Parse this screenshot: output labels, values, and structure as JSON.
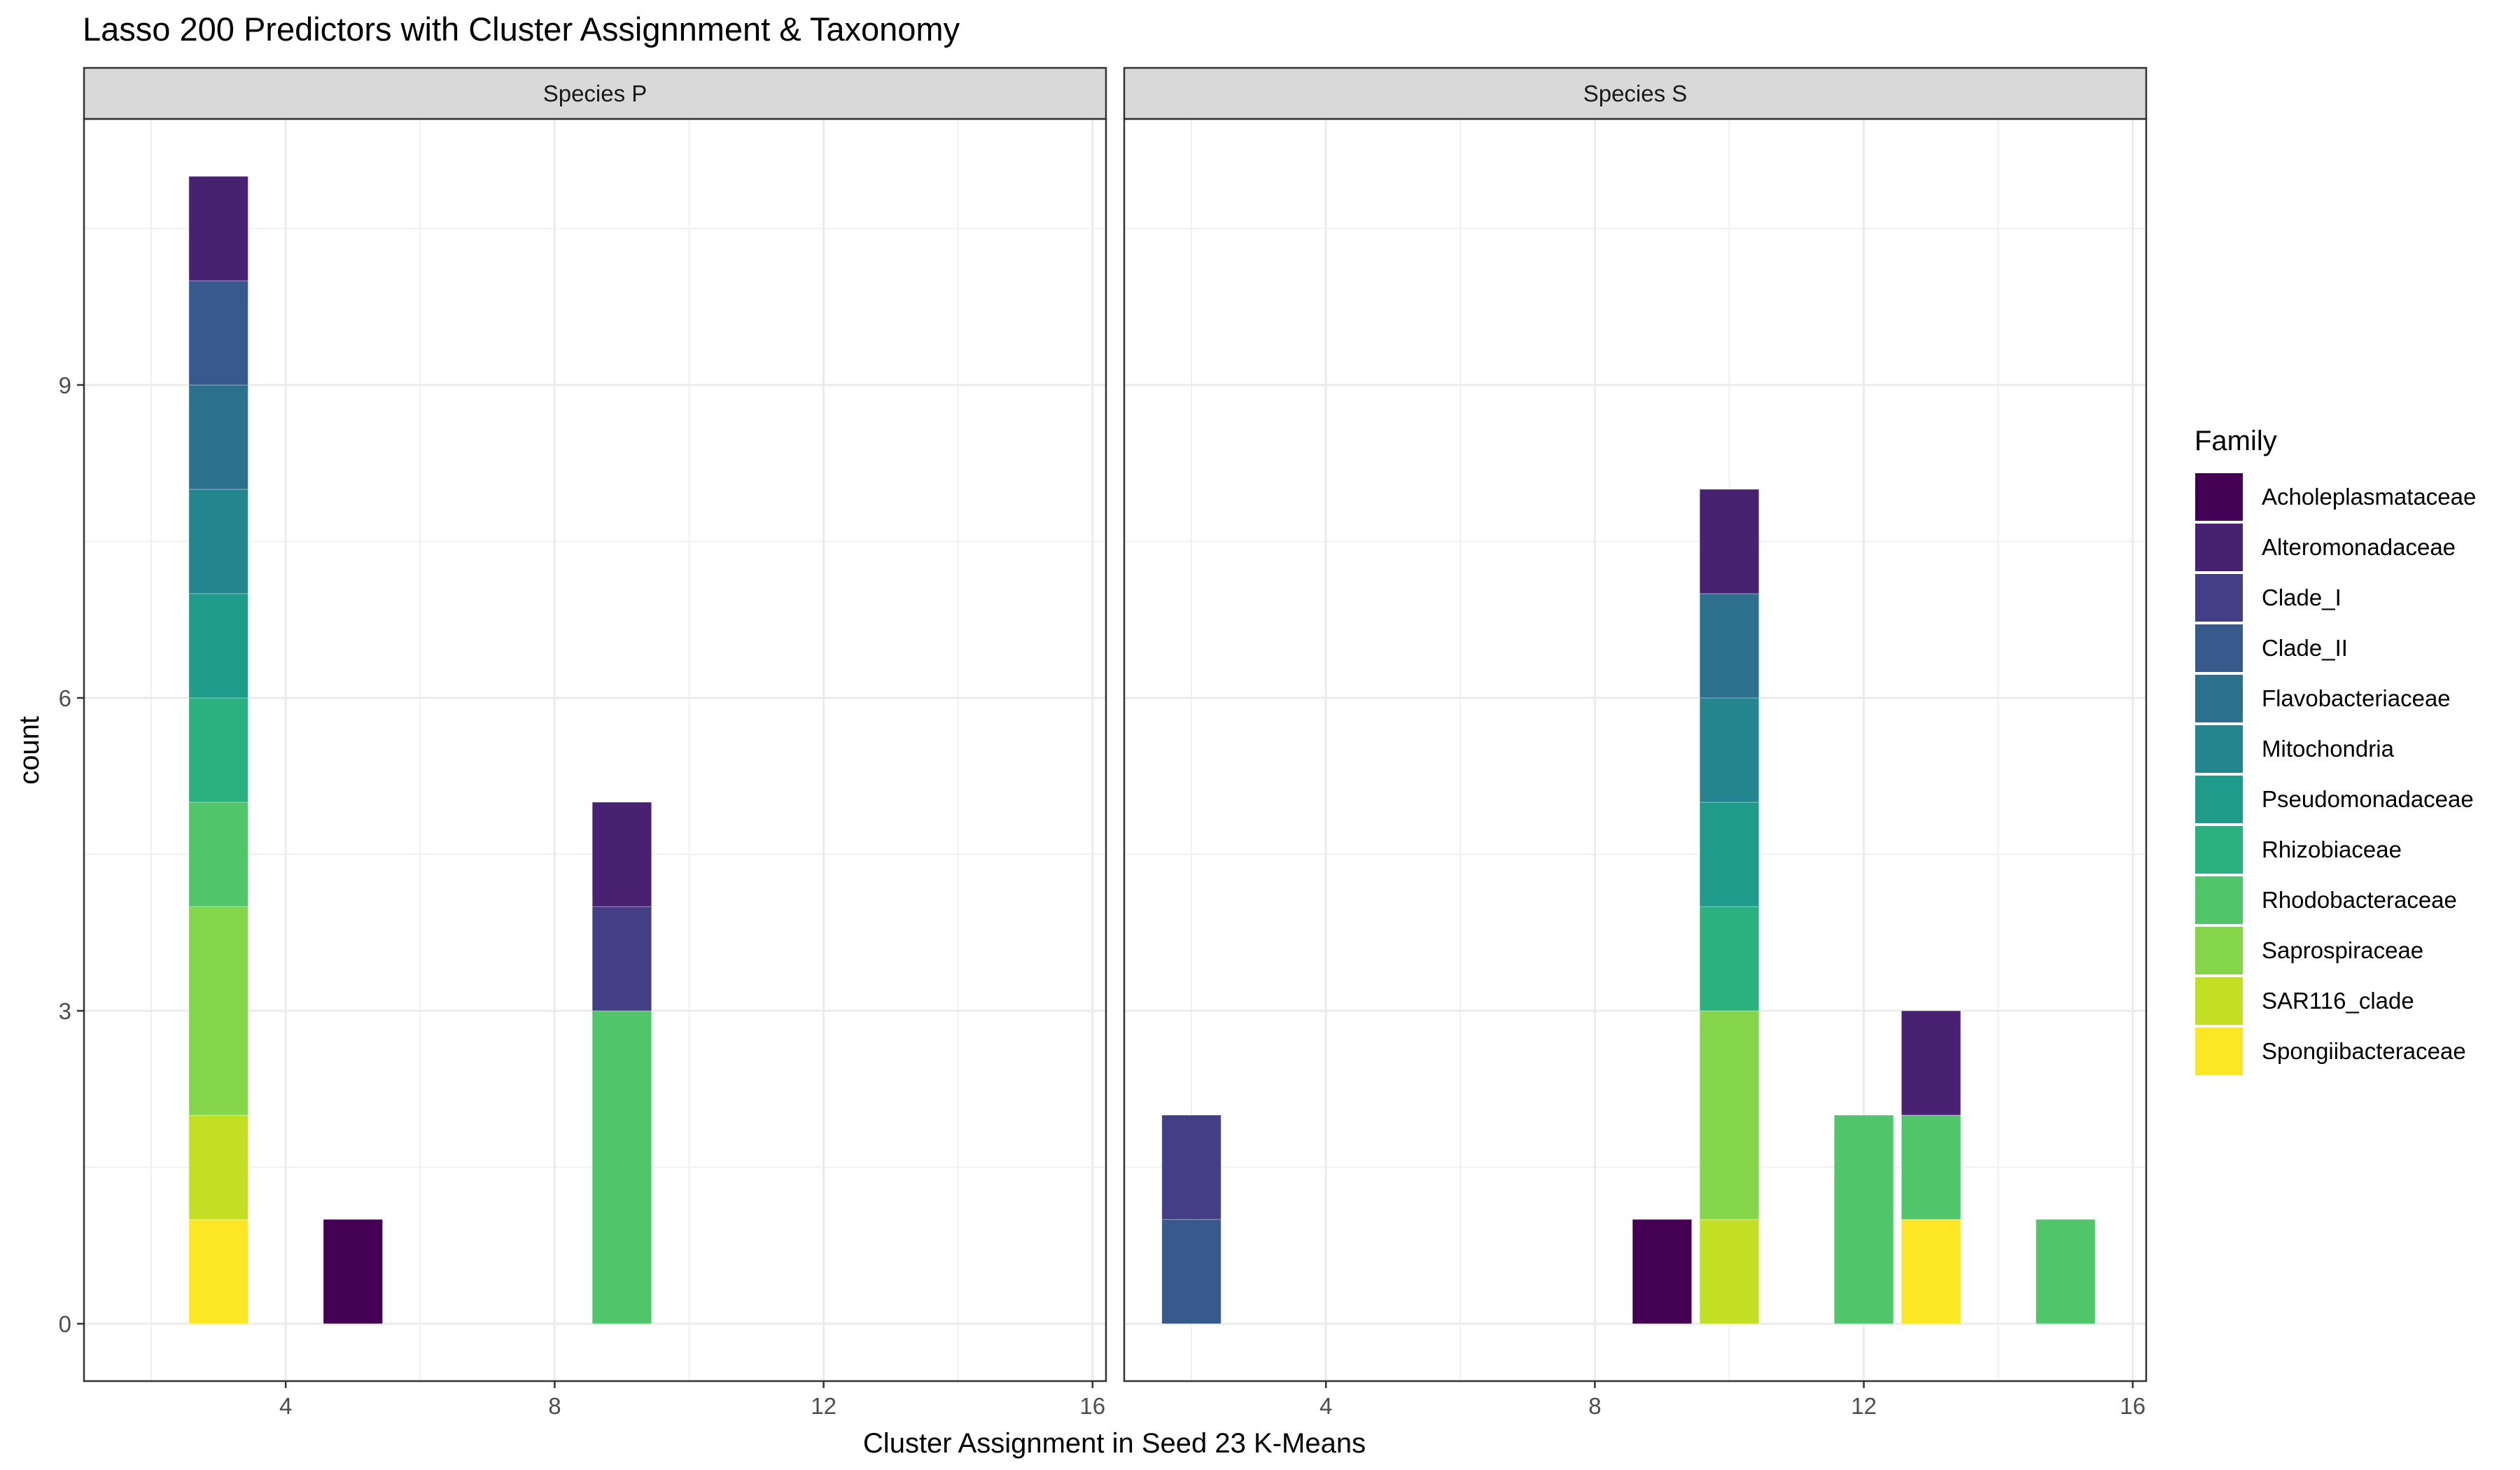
{
  "title": "Lasso 200 Predictors with Cluster Assignnment & Taxonomy",
  "xlabel": "Cluster Assignment in Seed 23 K-Means",
  "ylabel": "count",
  "legend": {
    "title": "Family",
    "entries": [
      {
        "name": "Acholeplasmataceae",
        "color": "#440154"
      },
      {
        "name": "Alteromonadaceae",
        "color": "#482173"
      },
      {
        "name": "Clade_I",
        "color": "#433E85"
      },
      {
        "name": "Clade_II",
        "color": "#38598C"
      },
      {
        "name": "Flavobacteriaceae",
        "color": "#2D708E"
      },
      {
        "name": "Mitochondria",
        "color": "#25858E"
      },
      {
        "name": "Pseudomonadaceae",
        "color": "#1E9B8A"
      },
      {
        "name": "Rhizobiaceae",
        "color": "#2BB07F"
      },
      {
        "name": "Rhodobacteraceae",
        "color": "#51C56A"
      },
      {
        "name": "Saprospiraceae",
        "color": "#85D54A"
      },
      {
        "name": "SAR116_clade",
        "color": "#C2DF23"
      },
      {
        "name": "Spongiibacteraceae",
        "color": "#FDE725"
      }
    ]
  },
  "chart_data": {
    "type": "bar",
    "stacked": true,
    "title": "Lasso 200 Predictors with Cluster Assignnment & Taxonomy",
    "xlabel": "Cluster Assignment in Seed 23 K-Means",
    "ylabel": "count",
    "xlim": [
      1,
      16.2
    ],
    "ylim": [
      -0.55,
      11.55
    ],
    "x_ticks": [
      4,
      8,
      12,
      16
    ],
    "y_ticks": [
      0,
      3,
      6,
      9
    ],
    "grid": true,
    "legend_position": "right",
    "facets": [
      {
        "label": "Species  P",
        "bars": [
          {
            "x": 3,
            "stack": [
              {
                "family": "Spongiibacteraceae",
                "count": 1
              },
              {
                "family": "SAR116_clade",
                "count": 1
              },
              {
                "family": "Saprospiraceae",
                "count": 2
              },
              {
                "family": "Rhodobacteraceae",
                "count": 1
              },
              {
                "family": "Rhizobiaceae",
                "count": 1
              },
              {
                "family": "Pseudomonadaceae",
                "count": 1
              },
              {
                "family": "Mitochondria",
                "count": 1
              },
              {
                "family": "Flavobacteriaceae",
                "count": 1
              },
              {
                "family": "Clade_II",
                "count": 1
              },
              {
                "family": "Alteromonadaceae",
                "count": 1
              }
            ]
          },
          {
            "x": 5,
            "stack": [
              {
                "family": "Acholeplasmataceae",
                "count": 1
              }
            ]
          },
          {
            "x": 9,
            "stack": [
              {
                "family": "Rhodobacteraceae",
                "count": 3
              },
              {
                "family": "Clade_I",
                "count": 1
              },
              {
                "family": "Alteromonadaceae",
                "count": 1
              }
            ]
          }
        ]
      },
      {
        "label": "Species  S",
        "bars": [
          {
            "x": 2,
            "stack": [
              {
                "family": "Clade_II",
                "count": 1
              },
              {
                "family": "Clade_I",
                "count": 1
              }
            ]
          },
          {
            "x": 9,
            "stack": [
              {
                "family": "Acholeplasmataceae",
                "count": 1
              }
            ]
          },
          {
            "x": 10,
            "stack": [
              {
                "family": "SAR116_clade",
                "count": 1
              },
              {
                "family": "Saprospiraceae",
                "count": 2
              },
              {
                "family": "Rhizobiaceae",
                "count": 1
              },
              {
                "family": "Pseudomonadaceae",
                "count": 1
              },
              {
                "family": "Mitochondria",
                "count": 1
              },
              {
                "family": "Flavobacteriaceae",
                "count": 1
              },
              {
                "family": "Alteromonadaceae",
                "count": 1
              }
            ]
          },
          {
            "x": 12,
            "stack": [
              {
                "family": "Rhodobacteraceae",
                "count": 2
              }
            ]
          },
          {
            "x": 13,
            "stack": [
              {
                "family": "Spongiibacteraceae",
                "count": 1
              },
              {
                "family": "Rhodobacteraceae",
                "count": 1
              },
              {
                "family": "Alteromonadaceae",
                "count": 1
              }
            ]
          },
          {
            "x": 15,
            "stack": [
              {
                "family": "Rhodobacteraceae",
                "count": 1
              }
            ]
          }
        ]
      }
    ]
  }
}
